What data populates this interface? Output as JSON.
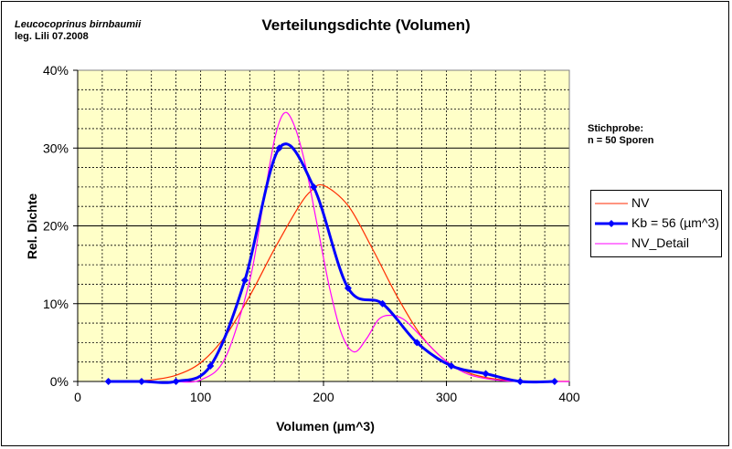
{
  "chart_data": {
    "type": "line",
    "title": "Verteilungsdichte (Volumen)",
    "xlabel": "Volumen (µm^3)",
    "ylabel": "Rel. Dichte",
    "xlim": [
      0,
      400
    ],
    "ylim": [
      0,
      0.4
    ],
    "x_ticks": [
      "0",
      "100",
      "200",
      "300",
      "400"
    ],
    "y_ticks": [
      "0%",
      "10%",
      "20%",
      "30%",
      "40%"
    ],
    "grid": true,
    "legend_position": "right",
    "series": [
      {
        "name": "NV",
        "color": "#ff2a00",
        "marker": "none",
        "x": [
          40,
          60,
          80,
          100,
          120,
          140,
          160,
          180,
          190,
          200,
          220,
          240,
          260,
          280,
          300,
          320,
          340,
          360,
          380,
          400
        ],
        "y": [
          0.0005,
          0.002,
          0.008,
          0.024,
          0.058,
          0.11,
          0.17,
          0.225,
          0.245,
          0.252,
          0.226,
          0.17,
          0.109,
          0.058,
          0.026,
          0.01,
          0.003,
          0.0008,
          0.0002,
          0.0
        ]
      },
      {
        "name": "Kb = 56 (µm^3)",
        "color": "#0000ff",
        "marker": "diamond",
        "x": [
          25,
          52,
          80,
          108,
          136,
          164,
          192,
          220,
          248,
          276,
          304,
          332,
          360,
          388
        ],
        "y": [
          0.0,
          0.0,
          0.0,
          0.02,
          0.13,
          0.3,
          0.25,
          0.12,
          0.1,
          0.05,
          0.02,
          0.01,
          0.0,
          0.0
        ]
      },
      {
        "name": "NV_Detail",
        "color": "#ff00ff",
        "marker": "none",
        "x": [
          80,
          100,
          120,
          140,
          150,
          160,
          168,
          176,
          185,
          195,
          205,
          215,
          225,
          235,
          245,
          255,
          265,
          275,
          290,
          305,
          320,
          340,
          360,
          400
        ],
        "y": [
          0.0,
          0.002,
          0.03,
          0.13,
          0.22,
          0.31,
          0.345,
          0.33,
          0.28,
          0.2,
          0.12,
          0.06,
          0.038,
          0.055,
          0.08,
          0.085,
          0.08,
          0.065,
          0.04,
          0.02,
          0.008,
          0.002,
          0.0,
          0.0
        ]
      }
    ]
  },
  "annotations": {
    "species_line1": "Leucocoprinus birnbaumii",
    "species_line2": "leg. Lili 07.2008",
    "sample_line1": "Stichprobe:",
    "sample_line2": "n = 50 Sporen"
  },
  "colors": {
    "plot_background": "#ffffc8",
    "grid": "#000000"
  }
}
